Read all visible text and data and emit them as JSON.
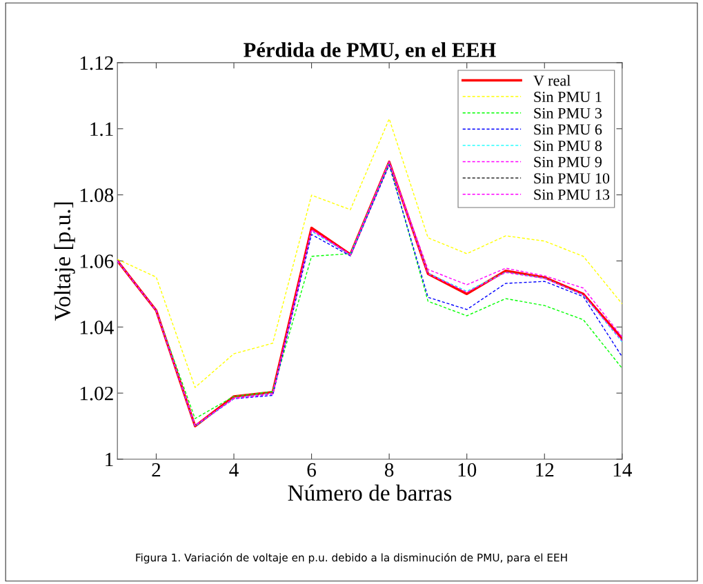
{
  "chart_data": {
    "type": "line",
    "title": "Pérdida de PMU, en el EEH",
    "xlabel": "Número de barras",
    "ylabel": "Voltaje [p.u.]",
    "annotations": [
      "Figura 1. Variación de voltaje en p.u. debido a la disminución de PMU, para el EEH"
    ],
    "x": [
      1,
      2,
      3,
      4,
      5,
      6,
      7,
      8,
      9,
      10,
      11,
      12,
      13,
      14
    ],
    "xlim": [
      1,
      14
    ],
    "xticks": [
      2,
      4,
      6,
      8,
      10,
      12,
      14
    ],
    "ylim": [
      1,
      1.12
    ],
    "yticks": [
      1,
      1.02,
      1.04,
      1.06,
      1.08,
      {
        "value": 1.1,
        "label": "1.1"
      },
      1.12
    ],
    "grid": false,
    "legend": "top right",
    "series": [
      {
        "name": "V real",
        "color": "#ff0000",
        "line_style": "solid",
        "values": [
          1.06,
          1.045,
          1.01,
          1.019,
          1.0203,
          1.07,
          1.062,
          1.09,
          1.0561,
          1.05,
          1.057,
          1.055,
          1.05,
          1.0365
        ]
      },
      {
        "name": "Sin PMU 1",
        "color": "#ffff00",
        "line_style": "dashed",
        "values": [
          1.0605,
          1.0551,
          1.0217,
          1.0319,
          1.0351,
          1.0799,
          1.0755,
          1.103,
          1.067,
          1.0622,
          1.0676,
          1.066,
          1.0614,
          1.047
        ]
      },
      {
        "name": "Sin PMU 3",
        "color": "#00ff00",
        "line_style": "dashed",
        "values": [
          1.06,
          1.045,
          1.0123,
          1.019,
          1.0205,
          1.0614,
          1.0622,
          1.0895,
          1.0478,
          1.0434,
          1.0486,
          1.0465,
          1.0422,
          1.0275
        ]
      },
      {
        "name": "Sin PMU 6",
        "color": "#0000ff",
        "line_style": "dashed",
        "values": [
          1.06,
          1.045,
          1.01,
          1.0183,
          1.0193,
          1.068,
          1.0615,
          1.089,
          1.049,
          1.0453,
          1.0532,
          1.0538,
          1.0492,
          1.031
        ]
      },
      {
        "name": "Sin PMU 8",
        "color": "#00ffff",
        "line_style": "dashed",
        "values": [
          1.06,
          1.045,
          1.01,
          1.0185,
          1.02,
          1.069,
          1.0618,
          1.09,
          1.0563,
          1.0508,
          1.0566,
          1.0548,
          1.0497,
          1.0355
        ]
      },
      {
        "name": "Sin PMU 9",
        "color": "#ff00ff",
        "line_style": "dashed",
        "values": [
          1.06,
          1.045,
          1.0102,
          1.0183,
          1.0197,
          1.0693,
          1.0618,
          1.0898,
          1.0561,
          1.0505,
          1.0565,
          1.0547,
          1.0498,
          1.0358
        ]
      },
      {
        "name": "Sin PMU 10",
        "color": "#000000",
        "line_style": "dashed",
        "values": [
          null,
          null,
          null,
          null,
          null,
          null,
          null,
          null,
          null,
          null,
          null,
          null,
          null,
          null
        ]
      },
      {
        "name": "Sin PMU 13",
        "color": "#ff00ff",
        "line_style": "dashed",
        "values": [
          1.06,
          1.045,
          1.0102,
          1.0185,
          1.0198,
          1.0695,
          1.062,
          1.09,
          1.0574,
          1.0528,
          1.0578,
          1.0555,
          1.0518,
          1.037
        ]
      }
    ]
  }
}
